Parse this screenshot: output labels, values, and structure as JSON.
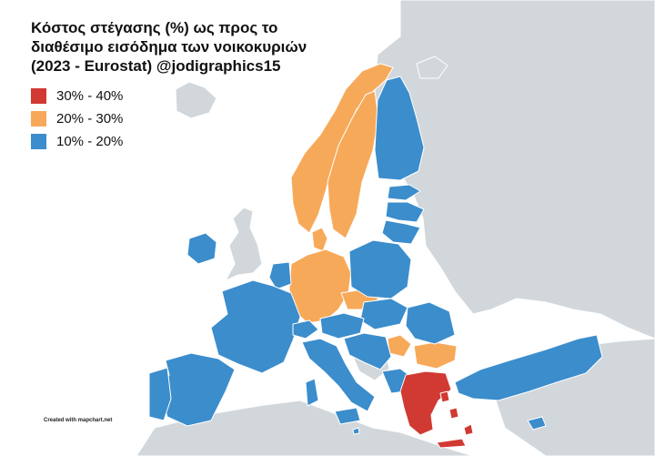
{
  "title_lines": [
    "Κόστος στέγασης (%) ως προς το",
    "διαθέσιμο εισόδημα των νοικοκυριών",
    "(2023 - Eurostat) @jodigraphics15"
  ],
  "legend": [
    {
      "label": "30% - 40%",
      "color": "#d13a32"
    },
    {
      "label": "20% - 30%",
      "color": "#f7a95a"
    },
    {
      "label": "10% - 20%",
      "color": "#3b8dcc"
    }
  ],
  "colors": {
    "sea": "#ffffff",
    "land_no_data": "#d2d7db",
    "border": "#ffffff"
  },
  "footer": "Created with mapchart.net",
  "map_data": {
    "type": "choropleth",
    "region": "Europe",
    "categories": {
      "30% - 40%": [
        "Greece"
      ],
      "20% - 30%": [
        "Norway",
        "Sweden",
        "Denmark",
        "Germany",
        "Czechia",
        "Bulgaria",
        "Romania (west)",
        "Finland (north tip)"
      ],
      "10% - 20%": [
        "Finland",
        "Estonia",
        "Latvia",
        "Lithuania",
        "Poland",
        "Slovakia",
        "Hungary",
        "Romania",
        "Austria",
        "Slovenia",
        "Croatia",
        "Italy",
        "France",
        "Spain",
        "Portugal",
        "Belgium",
        "Netherlands",
        "Luxembourg",
        "Ireland",
        "Switzerland",
        "Serbia",
        "North Macedonia",
        "Albania",
        "Turkey",
        "Cyprus",
        "Malta"
      ]
    }
  }
}
